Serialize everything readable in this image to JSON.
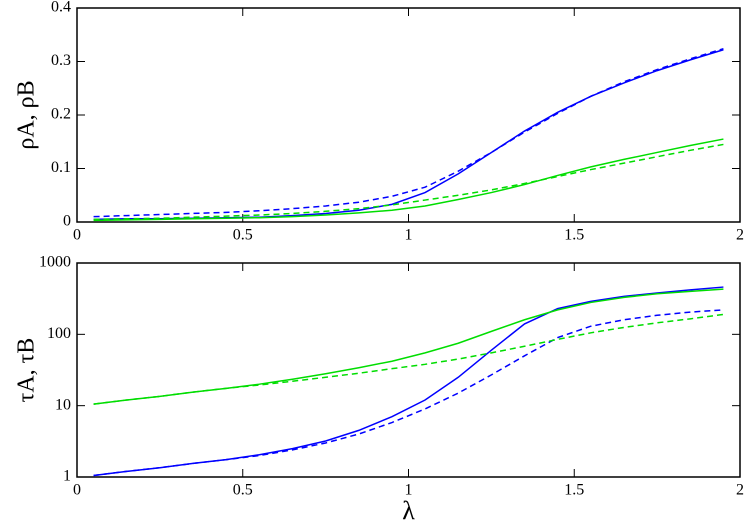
{
  "chart_data": [
    {
      "type": "line",
      "ylabel": "ρA, ρB",
      "x": [
        0.05,
        0.15,
        0.25,
        0.35,
        0.45,
        0.55,
        0.65,
        0.75,
        0.85,
        0.95,
        1.05,
        1.15,
        1.25,
        1.35,
        1.45,
        1.55,
        1.65,
        1.75,
        1.85,
        1.95
      ],
      "xlim": [
        0,
        2
      ],
      "xticks": [
        0,
        0.5,
        1,
        1.5,
        2
      ],
      "ylim": [
        0,
        0.4
      ],
      "yticks": [
        0,
        0.1,
        0.2,
        0.3,
        0.4
      ],
      "log": false,
      "series": [
        {
          "color": "#0000ff",
          "dashed": false,
          "values": [
            0.005,
            0.006,
            0.006,
            0.007,
            0.008,
            0.009,
            0.012,
            0.016,
            0.022,
            0.033,
            0.055,
            0.09,
            0.13,
            0.17,
            0.205,
            0.235,
            0.26,
            0.283,
            0.303,
            0.322
          ]
        },
        {
          "color": "#0000ff",
          "dashed": true,
          "values": [
            0.01,
            0.012,
            0.014,
            0.016,
            0.018,
            0.021,
            0.025,
            0.03,
            0.037,
            0.048,
            0.065,
            0.095,
            0.13,
            0.168,
            0.203,
            0.235,
            0.262,
            0.285,
            0.305,
            0.324
          ]
        },
        {
          "color": "#00dd00",
          "dashed": false,
          "values": [
            0.003,
            0.004,
            0.005,
            0.006,
            0.007,
            0.008,
            0.01,
            0.013,
            0.017,
            0.022,
            0.03,
            0.042,
            0.055,
            0.07,
            0.087,
            0.103,
            0.117,
            0.13,
            0.143,
            0.155
          ]
        },
        {
          "color": "#00dd00",
          "dashed": true,
          "values": [
            0.005,
            0.006,
            0.007,
            0.009,
            0.011,
            0.013,
            0.016,
            0.02,
            0.025,
            0.032,
            0.041,
            0.05,
            0.06,
            0.072,
            0.085,
            0.098,
            0.11,
            0.122,
            0.134,
            0.145
          ]
        }
      ]
    },
    {
      "type": "line",
      "ylabel": "τA, τB",
      "xlabel": "λ",
      "x": [
        0.05,
        0.15,
        0.25,
        0.35,
        0.45,
        0.55,
        0.65,
        0.75,
        0.85,
        0.95,
        1.05,
        1.15,
        1.25,
        1.35,
        1.45,
        1.55,
        1.65,
        1.75,
        1.85,
        1.95
      ],
      "xlim": [
        0,
        2
      ],
      "xticks": [
        0,
        0.5,
        1,
        1.5,
        2
      ],
      "ylim": [
        1,
        1000
      ],
      "yticks": [
        1,
        10,
        100,
        1000
      ],
      "log": true,
      "series": [
        {
          "color": "#0000ff",
          "dashed": false,
          "values": [
            1.05,
            1.2,
            1.35,
            1.55,
            1.75,
            2.05,
            2.5,
            3.2,
            4.5,
            7,
            12,
            25,
            60,
            140,
            230,
            290,
            340,
            380,
            420,
            460
          ]
        },
        {
          "color": "#0000ff",
          "dashed": true,
          "values": [
            1.05,
            1.2,
            1.35,
            1.55,
            1.75,
            2.0,
            2.4,
            3.0,
            4.0,
            5.8,
            9,
            15,
            27,
            50,
            90,
            130,
            160,
            185,
            205,
            220
          ]
        },
        {
          "color": "#00dd00",
          "dashed": false,
          "values": [
            10.5,
            12,
            13.5,
            15.5,
            17.5,
            20,
            23.5,
            28,
            34,
            42,
            55,
            75,
            110,
            160,
            220,
            280,
            330,
            370,
            400,
            430
          ]
        },
        {
          "color": "#00dd00",
          "dashed": true,
          "values": [
            10.5,
            12,
            13.5,
            15.5,
            17.5,
            19.5,
            22,
            25,
            28.5,
            33,
            38,
            45,
            55,
            68,
            85,
            105,
            125,
            145,
            165,
            190
          ]
        }
      ]
    }
  ]
}
